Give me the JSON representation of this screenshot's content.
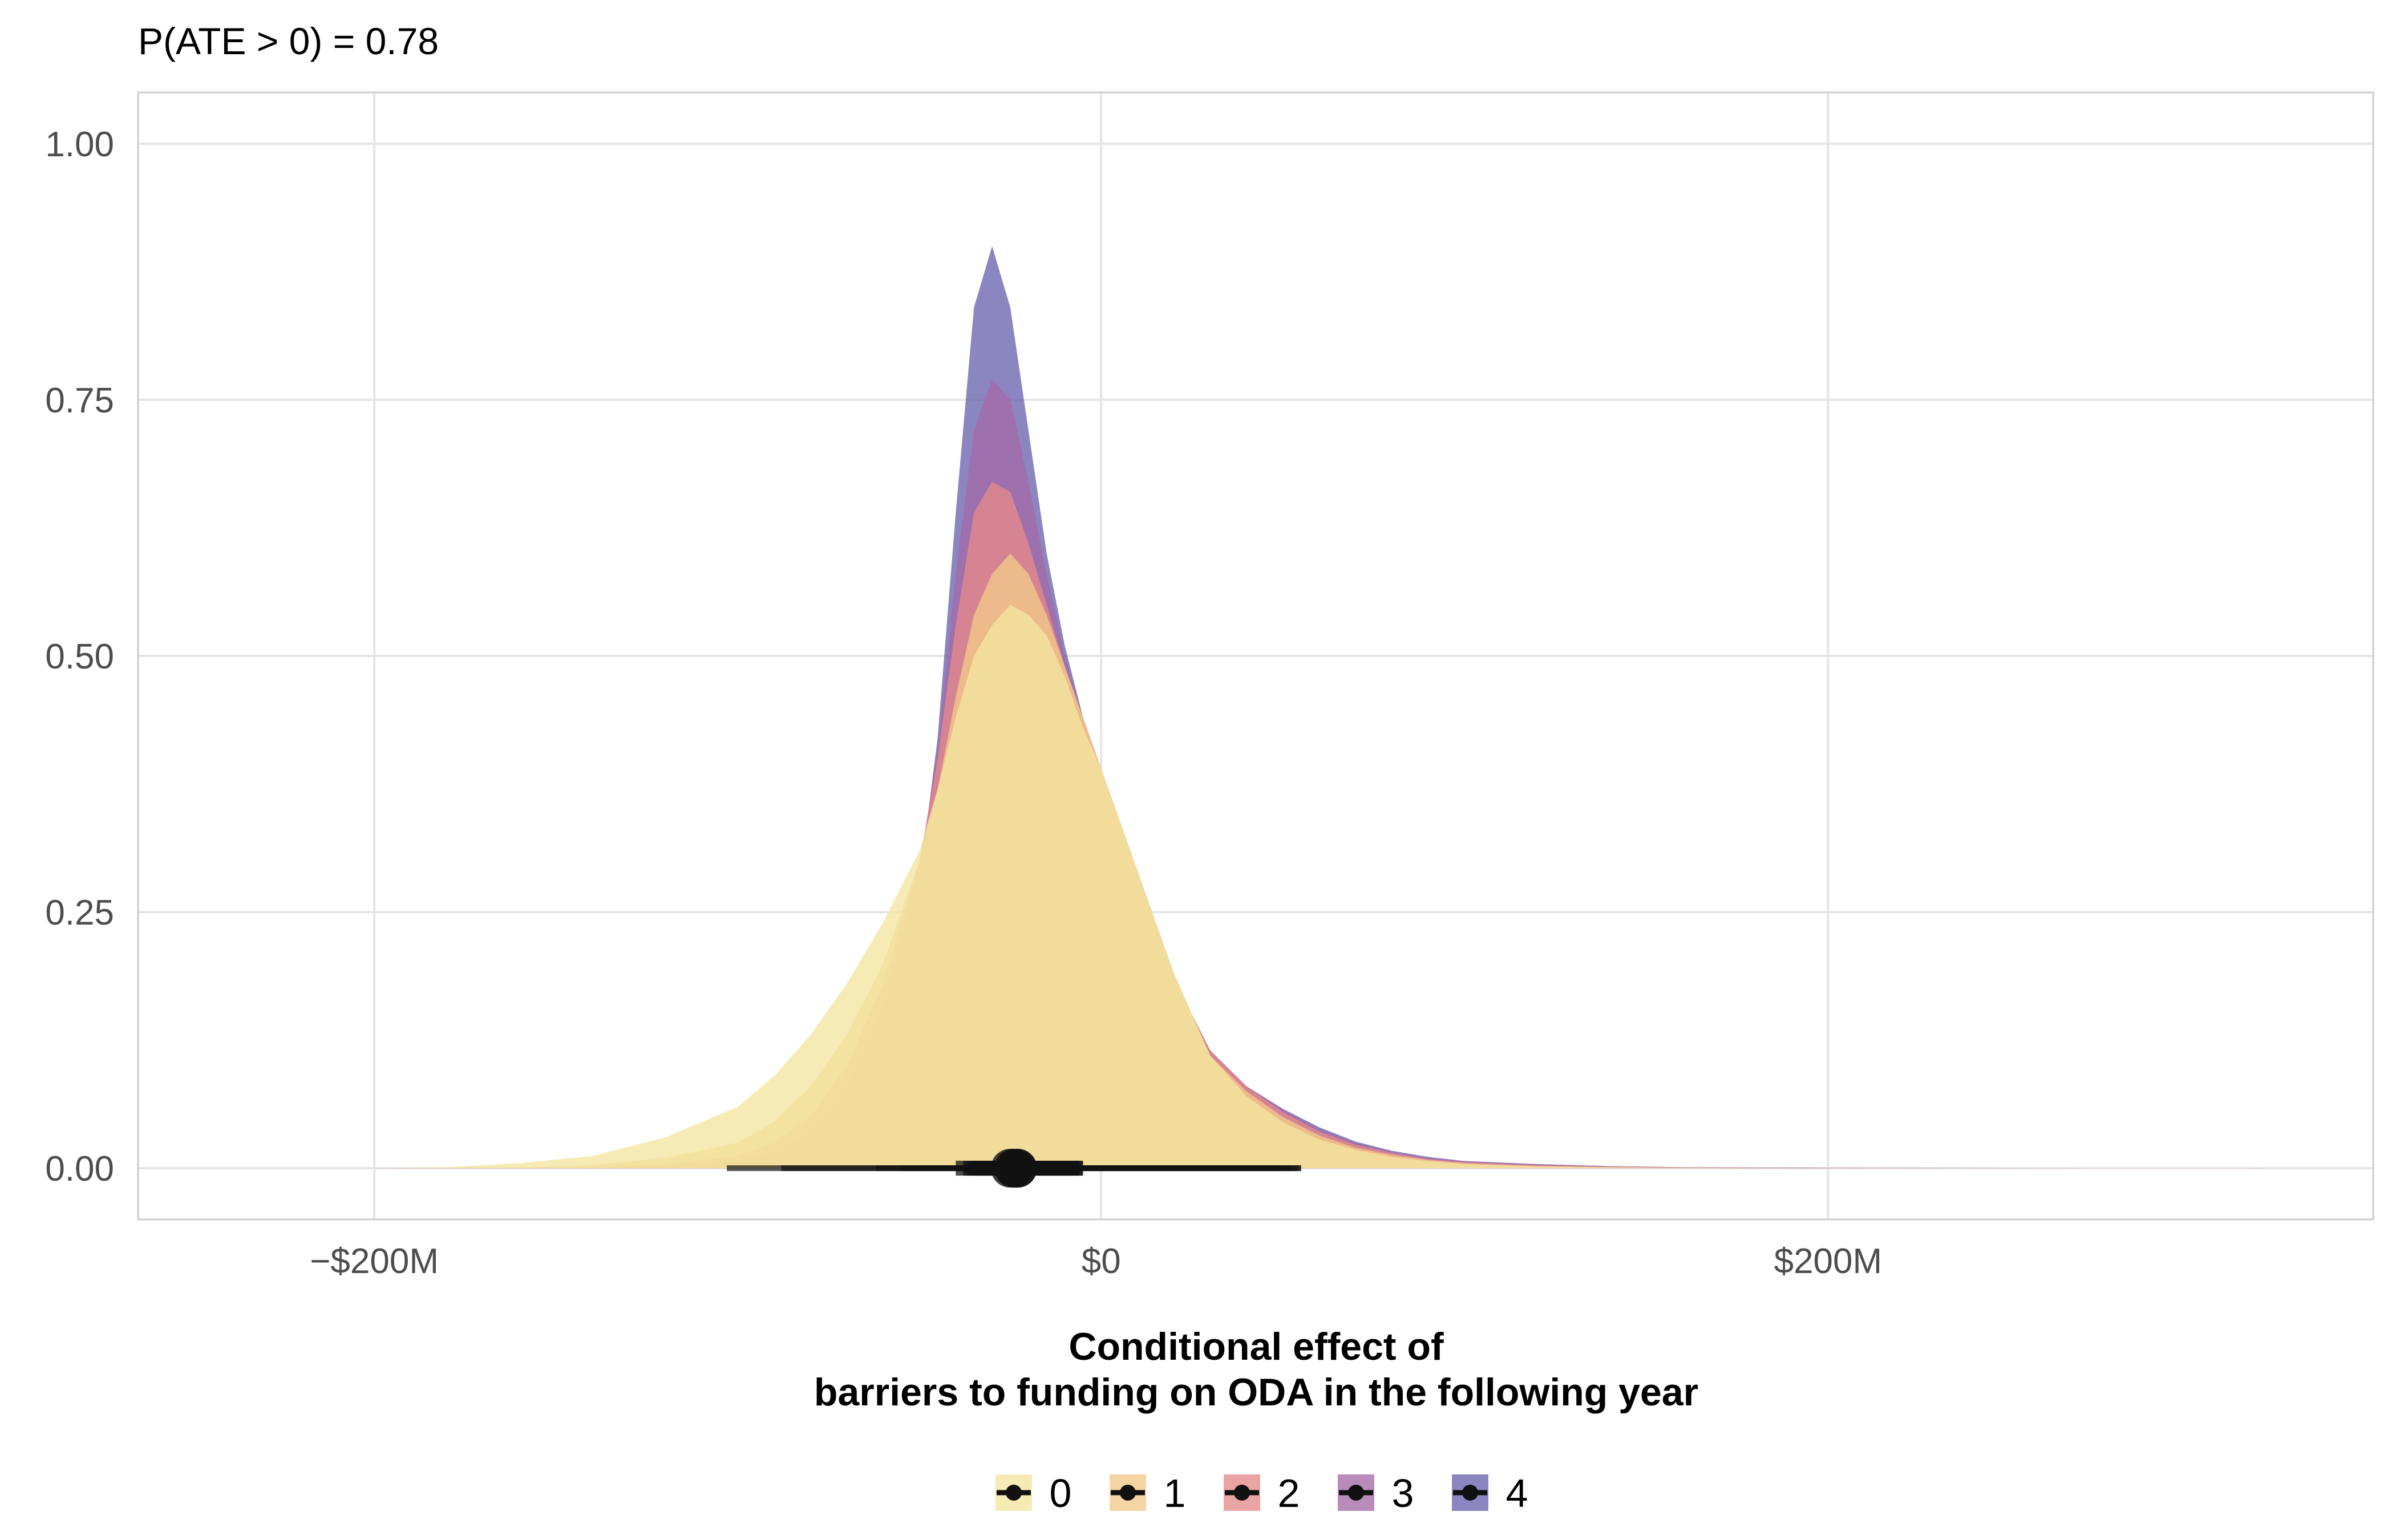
{
  "chart_data": {
    "type": "area",
    "subtitle": "P(ATE > 0) = 0.78",
    "xlabel_lines": [
      "Conditional effect of",
      "barriers to funding on ODA in the following year"
    ],
    "ylabel": "",
    "xlim": [
      -265,
      350
    ],
    "ylim": [
      -0.05,
      1.05
    ],
    "x_ticks": [
      {
        "value": -200,
        "label": "−$200M"
      },
      {
        "value": 0,
        "label": "$0"
      },
      {
        "value": 200,
        "label": "$200M"
      }
    ],
    "y_ticks": [
      {
        "value": 0,
        "label": "0.00"
      },
      {
        "value": 0.25,
        "label": "0.25"
      },
      {
        "value": 0.5,
        "label": "0.50"
      },
      {
        "value": 0.75,
        "label": "0.75"
      },
      {
        "value": 1.0,
        "label": "1.00"
      }
    ],
    "grid": true,
    "legend_position": "bottom",
    "x": [
      -200,
      -180,
      -160,
      -140,
      -120,
      -100,
      -90,
      -80,
      -70,
      -60,
      -50,
      -45,
      -40,
      -35,
      -30,
      -25,
      -20,
      -15,
      -10,
      -5,
      0,
      5,
      10,
      15,
      20,
      25,
      30,
      40,
      50,
      60,
      70,
      80,
      90,
      100,
      120,
      140,
      160,
      200,
      250,
      320
    ],
    "series": [
      {
        "name": "0",
        "color": "#f3e5a0",
        "values": [
          0,
          0.001,
          0.005,
          0.012,
          0.03,
          0.06,
          0.09,
          0.13,
          0.18,
          0.24,
          0.31,
          0.37,
          0.44,
          0.5,
          0.53,
          0.55,
          0.54,
          0.52,
          0.48,
          0.43,
          0.39,
          0.34,
          0.29,
          0.24,
          0.19,
          0.15,
          0.11,
          0.07,
          0.045,
          0.028,
          0.018,
          0.011,
          0.007,
          0.004,
          0.002,
          0.001,
          0.0005,
          0,
          0,
          0
        ],
        "interval": {
          "point": -25,
          "inner": [
            -40,
            -8
          ],
          "outer": [
            -103,
            50
          ]
        }
      },
      {
        "name": "1",
        "color": "#f4c98a",
        "values": [
          0,
          0,
          0.001,
          0.003,
          0.01,
          0.025,
          0.045,
          0.08,
          0.13,
          0.2,
          0.3,
          0.37,
          0.46,
          0.54,
          0.58,
          0.6,
          0.58,
          0.54,
          0.49,
          0.44,
          0.39,
          0.34,
          0.29,
          0.24,
          0.19,
          0.15,
          0.11,
          0.075,
          0.05,
          0.032,
          0.02,
          0.013,
          0.008,
          0.005,
          0.002,
          0.001,
          0.0005,
          0,
          0,
          0
        ],
        "interval": {
          "point": -24,
          "inner": [
            -38,
            -6
          ],
          "outer": [
            -88,
            52
          ]
        }
      },
      {
        "name": "2",
        "color": "#e68a8a",
        "values": [
          0,
          0,
          0,
          0.001,
          0.004,
          0.012,
          0.025,
          0.05,
          0.1,
          0.18,
          0.3,
          0.4,
          0.53,
          0.64,
          0.67,
          0.66,
          0.61,
          0.55,
          0.49,
          0.44,
          0.39,
          0.34,
          0.29,
          0.24,
          0.19,
          0.15,
          0.115,
          0.08,
          0.055,
          0.036,
          0.023,
          0.015,
          0.009,
          0.006,
          0.003,
          0.0015,
          0.0007,
          0.0002,
          0,
          0
        ],
        "interval": {
          "point": -24,
          "inner": [
            -37,
            -5
          ],
          "outer": [
            -62,
            54
          ]
        }
      },
      {
        "name": "3",
        "color": "#a46aa8",
        "values": [
          0,
          0,
          0,
          0,
          0.002,
          0.006,
          0.015,
          0.035,
          0.08,
          0.16,
          0.29,
          0.41,
          0.58,
          0.72,
          0.77,
          0.75,
          0.67,
          0.58,
          0.5,
          0.44,
          0.39,
          0.34,
          0.29,
          0.24,
          0.19,
          0.15,
          0.115,
          0.08,
          0.057,
          0.038,
          0.025,
          0.016,
          0.01,
          0.007,
          0.004,
          0.002,
          0.001,
          0.0003,
          0.0001,
          0
        ],
        "interval": {
          "point": -23,
          "inner": [
            -36,
            -5
          ],
          "outer": [
            -55,
            55
          ]
        }
      },
      {
        "name": "4",
        "color": "#6a64ae",
        "values": [
          0,
          0,
          0,
          0,
          0.001,
          0.003,
          0.008,
          0.02,
          0.06,
          0.14,
          0.28,
          0.42,
          0.64,
          0.84,
          0.9,
          0.84,
          0.72,
          0.6,
          0.51,
          0.44,
          0.39,
          0.34,
          0.29,
          0.24,
          0.19,
          0.15,
          0.115,
          0.08,
          0.058,
          0.04,
          0.026,
          0.017,
          0.011,
          0.007,
          0.004,
          0.002,
          0.001,
          0.0004,
          0.0001,
          0
        ],
        "interval": {
          "point": -23,
          "inner": [
            -35,
            -6
          ],
          "outer": [
            -50,
            55
          ]
        }
      }
    ]
  }
}
